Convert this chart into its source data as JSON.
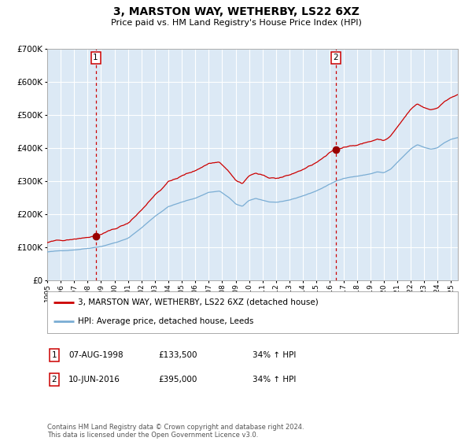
{
  "title": "3, MARSTON WAY, WETHERBY, LS22 6XZ",
  "subtitle": "Price paid vs. HM Land Registry's House Price Index (HPI)",
  "sale1_date": "07-AUG-1998",
  "sale1_price": 133500,
  "sale1_label": "1",
  "sale1_year": 1998.6,
  "sale2_date": "10-JUN-2016",
  "sale2_price": 395000,
  "sale2_label": "2",
  "sale2_year": 2016.44,
  "legend_property": "3, MARSTON WAY, WETHERBY, LS22 6XZ (detached house)",
  "legend_hpi": "HPI: Average price, detached house, Leeds",
  "table_row1": [
    "1",
    "07-AUG-1998",
    "£133,500",
    "34% ↑ HPI"
  ],
  "table_row2": [
    "2",
    "10-JUN-2016",
    "£395,000",
    "34% ↑ HPI"
  ],
  "footnote": "Contains HM Land Registry data © Crown copyright and database right 2024.\nThis data is licensed under the Open Government Licence v3.0.",
  "fig_bg_color": "#ffffff",
  "plot_bg_color": "#dce9f5",
  "grid_color": "#ffffff",
  "property_line_color": "#cc0000",
  "hpi_line_color": "#7aadd4",
  "vline_color": "#cc0000",
  "point_color": "#990000",
  "ylim": [
    0,
    700000
  ],
  "xlim_start": 1995.0,
  "xlim_end": 2025.5,
  "hpi_knots": [
    [
      1995.0,
      85000
    ],
    [
      1996.0,
      88000
    ],
    [
      1997.0,
      92000
    ],
    [
      1998.0,
      97000
    ],
    [
      1999.0,
      104000
    ],
    [
      2000.0,
      115000
    ],
    [
      2001.0,
      128000
    ],
    [
      2002.0,
      160000
    ],
    [
      2003.0,
      195000
    ],
    [
      2004.0,
      225000
    ],
    [
      2005.0,
      238000
    ],
    [
      2006.0,
      250000
    ],
    [
      2007.0,
      268000
    ],
    [
      2007.8,
      272000
    ],
    [
      2008.5,
      252000
    ],
    [
      2009.0,
      232000
    ],
    [
      2009.5,
      225000
    ],
    [
      2010.0,
      242000
    ],
    [
      2010.5,
      248000
    ],
    [
      2011.0,
      243000
    ],
    [
      2011.5,
      238000
    ],
    [
      2012.0,
      237000
    ],
    [
      2012.5,
      238000
    ],
    [
      2013.0,
      242000
    ],
    [
      2013.5,
      248000
    ],
    [
      2014.0,
      255000
    ],
    [
      2014.5,
      262000
    ],
    [
      2015.0,
      270000
    ],
    [
      2015.5,
      280000
    ],
    [
      2016.0,
      290000
    ],
    [
      2016.5,
      300000
    ],
    [
      2017.0,
      308000
    ],
    [
      2017.5,
      312000
    ],
    [
      2018.0,
      315000
    ],
    [
      2018.5,
      318000
    ],
    [
      2019.0,
      322000
    ],
    [
      2019.5,
      328000
    ],
    [
      2020.0,
      325000
    ],
    [
      2020.5,
      335000
    ],
    [
      2021.0,
      355000
    ],
    [
      2021.5,
      375000
    ],
    [
      2022.0,
      395000
    ],
    [
      2022.5,
      408000
    ],
    [
      2023.0,
      400000
    ],
    [
      2023.5,
      395000
    ],
    [
      2024.0,
      400000
    ],
    [
      2024.5,
      415000
    ],
    [
      2025.0,
      425000
    ],
    [
      2025.5,
      430000
    ]
  ]
}
